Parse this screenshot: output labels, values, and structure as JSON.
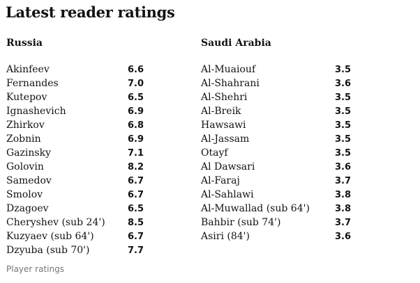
{
  "title": "Latest reader ratings",
  "teams": [
    {
      "name": "Russia",
      "players": [
        {
          "name": "Akinfeev",
          "rating": "6.6"
        },
        {
          "name": "Fernandes",
          "rating": "7.0"
        },
        {
          "name": "Kutepov",
          "rating": "6.5"
        },
        {
          "name": "Ignashevich",
          "rating": "6.9"
        },
        {
          "name": "Zhirkov",
          "rating": "6.8"
        },
        {
          "name": "Zobnin",
          "rating": "6.9"
        },
        {
          "name": "Gazinsky",
          "rating": "7.1"
        },
        {
          "name": "Golovin",
          "rating": "8.2"
        },
        {
          "name": "Samedov",
          "rating": "6.7"
        },
        {
          "name": "Smolov",
          "rating": "6.7"
        },
        {
          "name": "Dzagoev",
          "rating": "6.5"
        },
        {
          "name": "Cheryshev (sub 24')",
          "rating": "8.5"
        },
        {
          "name": "Kuzyaev (sub 64')",
          "rating": "6.7"
        },
        {
          "name": "Dzyuba (sub 70')",
          "rating": "7.7"
        }
      ]
    },
    {
      "name": "Saudi Arabia",
      "players": [
        {
          "name": "Al-Muaiouf",
          "rating": "3.5"
        },
        {
          "name": "Al-Shahrani",
          "rating": "3.6"
        },
        {
          "name": "Al-Shehri",
          "rating": "3.5"
        },
        {
          "name": "Al-Breik",
          "rating": "3.5"
        },
        {
          "name": "Hawsawi",
          "rating": "3.5"
        },
        {
          "name": "Al-Jassam",
          "rating": "3.5"
        },
        {
          "name": "Otayf",
          "rating": "3.5"
        },
        {
          "name": "Al Dawsari",
          "rating": "3.6"
        },
        {
          "name": "Al-Faraj",
          "rating": "3.7"
        },
        {
          "name": "Al-Sahlawi",
          "rating": "3.8"
        },
        {
          "name": "Al-Muwallad (sub 64')",
          "rating": "3.8"
        },
        {
          "name": "Bahbir (sub 74')",
          "rating": "3.7"
        },
        {
          "name": "Asiri (84')",
          "rating": "3.6"
        }
      ]
    }
  ],
  "caption": "Player ratings"
}
